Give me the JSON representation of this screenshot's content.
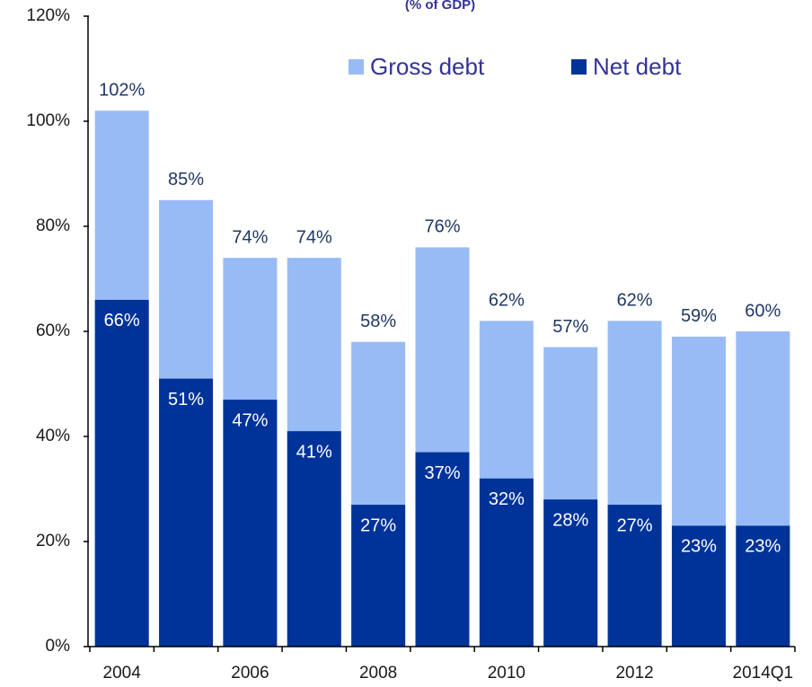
{
  "chart_data": {
    "type": "overlap_bar",
    "subtitle": "(% of GDP)",
    "categories": [
      "2004",
      null,
      "2006",
      null,
      "2008",
      null,
      "2010",
      null,
      "2012",
      null,
      "2014Q1"
    ],
    "series": [
      {
        "name": "Gross debt",
        "color": "#99bbf5",
        "values": [
          102,
          85,
          74,
          74,
          58,
          76,
          62,
          57,
          62,
          59,
          60
        ],
        "value_labels": [
          "102%",
          "85%",
          "74%",
          "74%",
          "58%",
          "76%",
          "62%",
          "57%",
          "62%",
          "59%",
          "60%"
        ]
      },
      {
        "name": "Net debt",
        "color": "#003399",
        "values": [
          66,
          51,
          47,
          41,
          27,
          37,
          32,
          28,
          27,
          23,
          23
        ],
        "value_labels": [
          "66%",
          "51%",
          "47%",
          "41%",
          "27%",
          "37%",
          "32%",
          "28%",
          "27%",
          "23%",
          "23%"
        ]
      }
    ],
    "ylim": [
      0,
      120
    ],
    "yticks": [
      {
        "value": 0,
        "label": "0%"
      },
      {
        "value": 20,
        "label": "20%"
      },
      {
        "value": 40,
        "label": "40%"
      },
      {
        "value": 60,
        "label": "60%"
      },
      {
        "value": 80,
        "label": "80%"
      },
      {
        "value": 100,
        "label": "100%"
      },
      {
        "value": 120,
        "label": "120%"
      }
    ]
  }
}
